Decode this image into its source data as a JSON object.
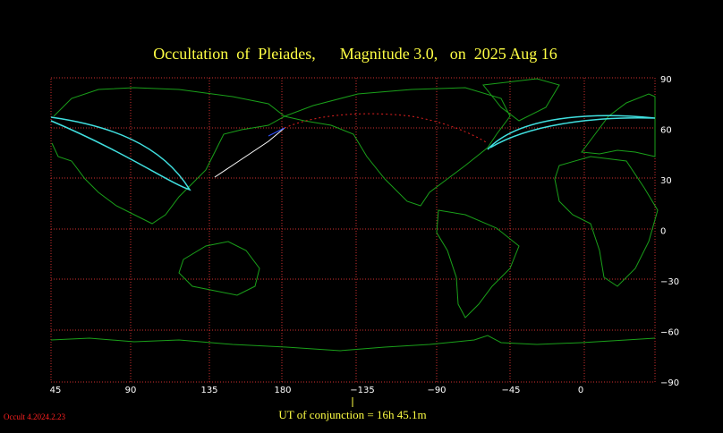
{
  "header": {
    "title": "Occultation  of  Pleiades,      Magnitude 3.0,   on  2025 Aug 16"
  },
  "map": {
    "longitude_labels": [
      "45",
      "90",
      "135",
      "180",
      "−135",
      "−90",
      "−45",
      "0"
    ],
    "latitude_labels": [
      "90",
      "60",
      "30",
      "0",
      "−30",
      "−60",
      "−90"
    ]
  },
  "footer": {
    "conjunction": "UT of conjunction = 16h 45.1m",
    "version": "Occult 4.2024.2.23"
  }
}
